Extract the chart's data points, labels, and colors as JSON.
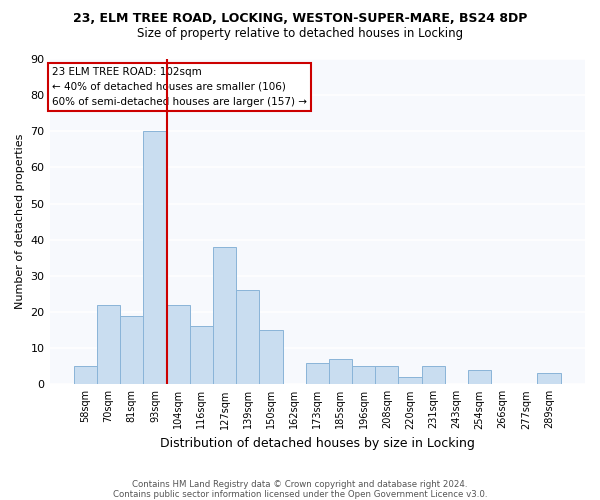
{
  "title1": "23, ELM TREE ROAD, LOCKING, WESTON-SUPER-MARE, BS24 8DP",
  "title2": "Size of property relative to detached houses in Locking",
  "xlabel": "Distribution of detached houses by size in Locking",
  "ylabel": "Number of detached properties",
  "bin_labels": [
    "58sqm",
    "70sqm",
    "81sqm",
    "93sqm",
    "104sqm",
    "116sqm",
    "127sqm",
    "139sqm",
    "150sqm",
    "162sqm",
    "173sqm",
    "185sqm",
    "196sqm",
    "208sqm",
    "220sqm",
    "231sqm",
    "243sqm",
    "254sqm",
    "266sqm",
    "277sqm",
    "289sqm"
  ],
  "bar_heights": [
    5,
    22,
    19,
    70,
    22,
    16,
    38,
    26,
    15,
    0,
    6,
    7,
    5,
    5,
    2,
    5,
    0,
    4,
    0,
    0,
    3
  ],
  "bar_color": "#c9ddf0",
  "bar_edge_color": "#8ab4d8",
  "vline_color": "#cc0000",
  "annotation_text": "23 ELM TREE ROAD: 102sqm\n← 40% of detached houses are smaller (106)\n60% of semi-detached houses are larger (157) →",
  "annotation_box_color": "#ffffff",
  "annotation_box_edge": "#cc0000",
  "footer1": "Contains HM Land Registry data © Crown copyright and database right 2024.",
  "footer2": "Contains public sector information licensed under the Open Government Licence v3.0.",
  "bg_color": "#ffffff",
  "plot_bg_color": "#f7f9fd",
  "grid_color": "#ffffff",
  "ylim": [
    0,
    90
  ],
  "yticks": [
    0,
    10,
    20,
    30,
    40,
    50,
    60,
    70,
    80,
    90
  ],
  "vline_index": 3.5
}
